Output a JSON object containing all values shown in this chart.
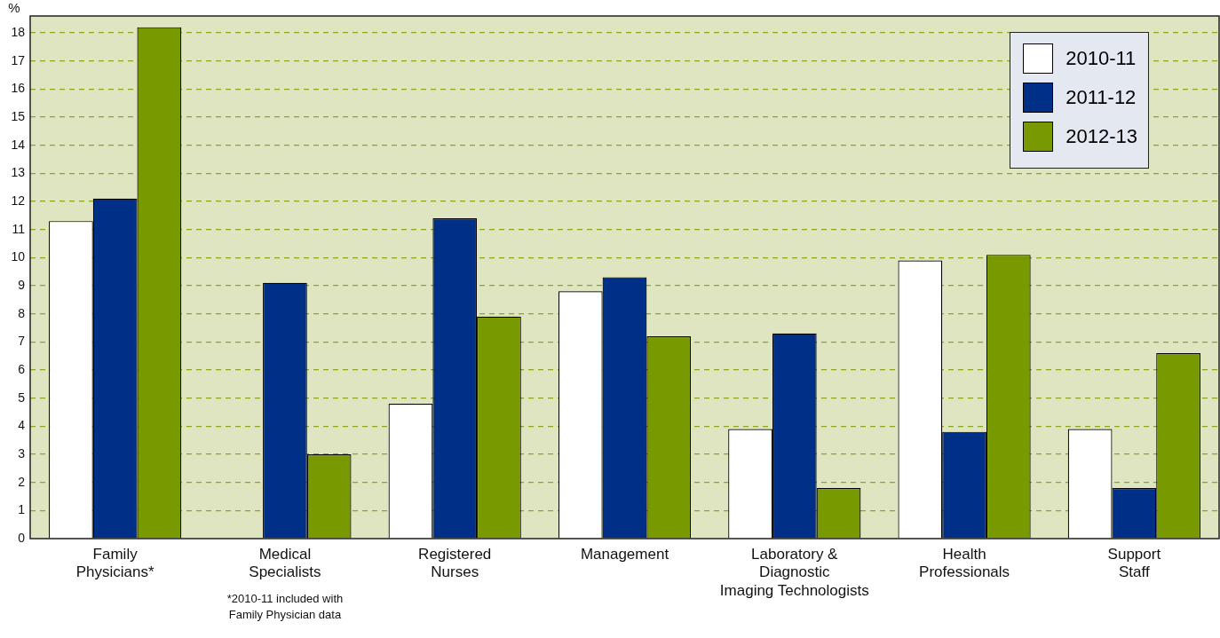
{
  "chart_data": {
    "type": "bar",
    "ylabel": "%",
    "categories": [
      "Family\nPhysicians*",
      "Medical\nSpecialists",
      "Registered\nNurses",
      "Management",
      "Laboratory &\nDiagnostic\nImaging Technologists",
      "Health\nProfessionals",
      "Support\nStaff"
    ],
    "series": [
      {
        "name": "2010-11",
        "color": "#ffffff",
        "values": [
          11.3,
          null,
          4.8,
          8.8,
          3.9,
          9.9,
          3.9
        ]
      },
      {
        "name": "2011-12",
        "color": "#002f87",
        "values": [
          12.1,
          9.1,
          11.4,
          9.3,
          7.3,
          3.8,
          1.8
        ]
      },
      {
        "name": "2012-13",
        "color": "#789a00",
        "values": [
          18.2,
          3.0,
          7.9,
          7.2,
          1.8,
          10.1,
          6.6
        ]
      }
    ],
    "ylim": [
      0,
      18.6
    ],
    "yticks": [
      0,
      1,
      2,
      3,
      4,
      5,
      6,
      7,
      8,
      9,
      10,
      11,
      12,
      13,
      14,
      15,
      16,
      17,
      18
    ],
    "grid": "y",
    "legend": "top right",
    "annotations": [
      "*2010-11 included with\nFamily Physician data"
    ]
  }
}
